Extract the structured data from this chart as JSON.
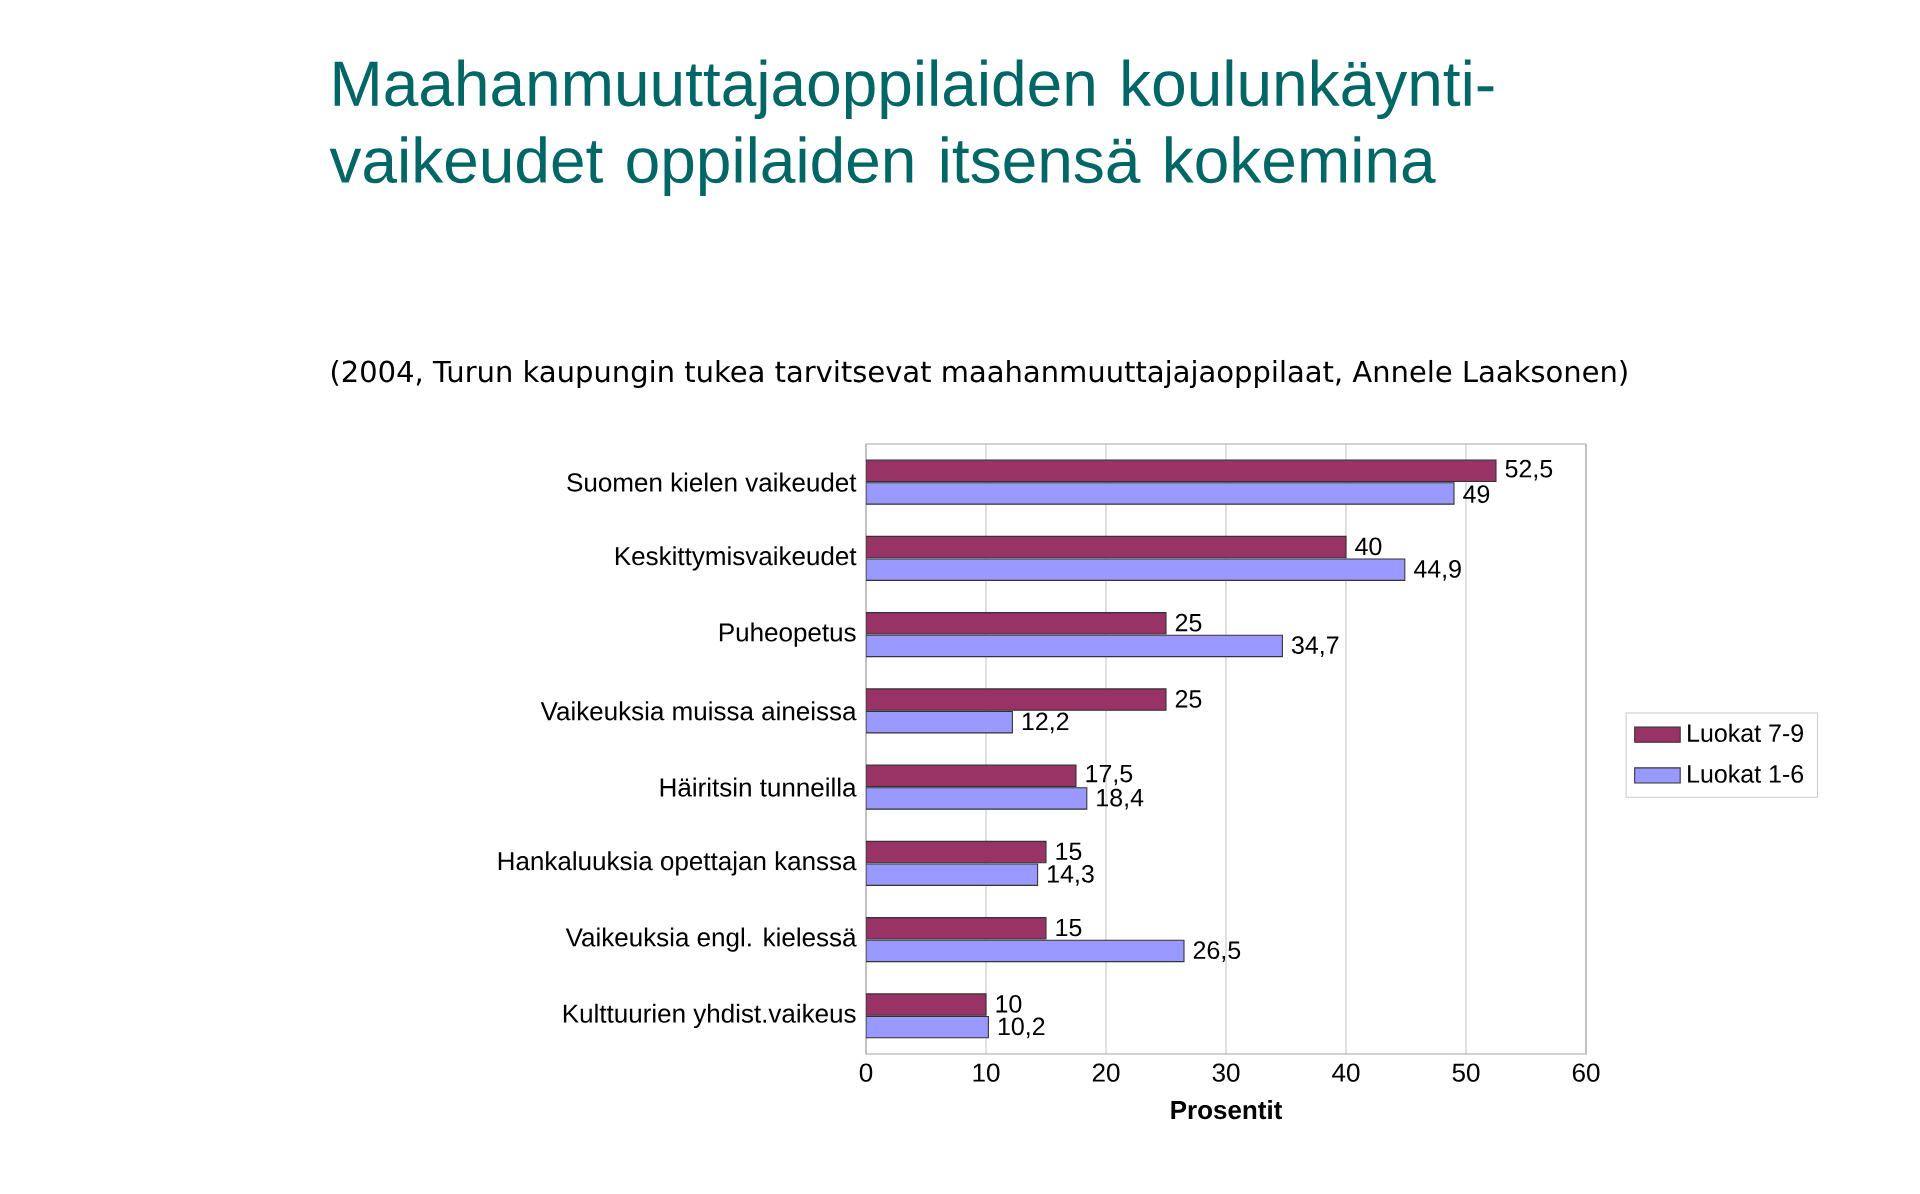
{
  "chart_data": {
    "type": "bar",
    "orientation": "horizontal",
    "title": "Maahanmuuttajaoppilaiden koulunkäynti-vaikeudet oppilaiden itsensä kokemina",
    "subtitle": "(2004, Turun kaupungin tukea tarvitsevat maahanmuuttajajaoppilaat,  Annele Laaksonen)",
    "xlabel": "Prosentit",
    "categories": [
      "Suomen kielen vaikeudet",
      "Keskittymisvaikeudet",
      "Puheopetus",
      "Vaikeuksia muissa aineissa",
      "Häiritsin tunneilla",
      "Hankaluuksia opettajan kanssa",
      "Vaikeuksia engl. kielessä",
      "Kulttuurien yhdist.vaikeus"
    ],
    "series": [
      {
        "name": "Luokat 7-9",
        "color": "#993366",
        "values": [
          52.5,
          40,
          25,
          25,
          17.5,
          15,
          15,
          10
        ],
        "value_labels": [
          "52,5",
          "40",
          "25",
          "25",
          "17,5",
          "15",
          "15",
          "10"
        ]
      },
      {
        "name": "Luokat 1-6",
        "color": "#9999ff",
        "values": [
          49,
          44.9,
          34.7,
          12.2,
          18.4,
          14.3,
          26.5,
          10.2
        ],
        "value_labels": [
          "49",
          "44,9",
          "34,7",
          "12,2",
          "18,4",
          "14,3",
          "26,5",
          "10,2"
        ]
      }
    ],
    "xlim": [
      0,
      60
    ],
    "xticks": [
      0,
      10,
      20,
      30,
      40,
      50,
      60
    ],
    "grid": "x",
    "legend": "right"
  }
}
